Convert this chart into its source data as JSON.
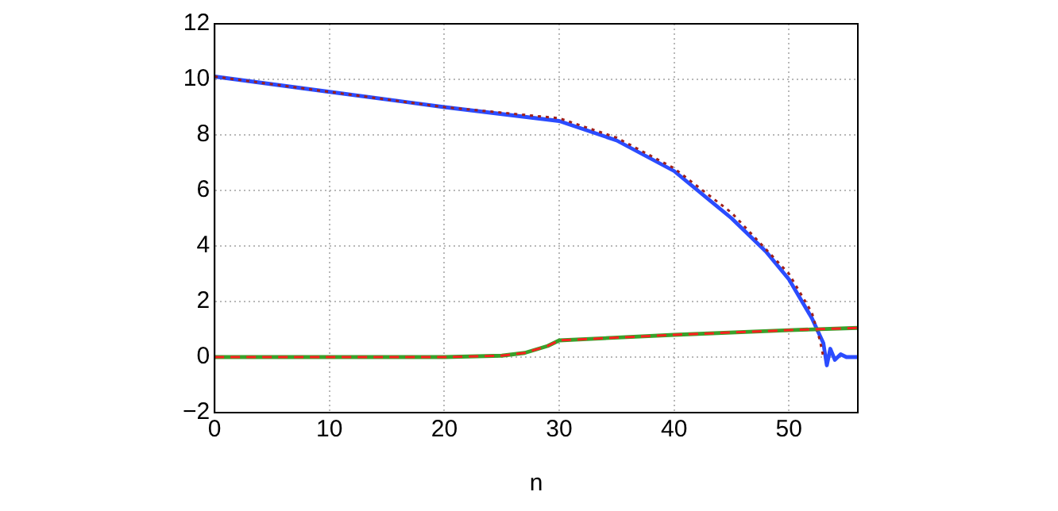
{
  "chart_data": {
    "type": "line",
    "xlabel": "n",
    "xlim": [
      0,
      56
    ],
    "xticks": [
      0,
      10,
      20,
      30,
      40,
      50
    ],
    "ylim": [
      -2,
      12
    ],
    "yticks": [
      -2,
      0,
      2,
      4,
      6,
      8,
      10,
      12
    ],
    "grid": true,
    "legend": false,
    "marker": "none",
    "series": [
      {
        "color": "#2b4cff",
        "line_style": "solid",
        "x": [
          0,
          10,
          20,
          30,
          35,
          40,
          45,
          48,
          50,
          52,
          53,
          53.3,
          53.6,
          54,
          54.5,
          55,
          56
        ],
        "values": [
          10.1,
          9.55,
          9.0,
          8.5,
          7.8,
          6.7,
          5.0,
          3.8,
          2.8,
          1.4,
          0.5,
          -0.3,
          0.3,
          -0.1,
          0.1,
          0,
          0
        ]
      },
      {
        "color": "#a0201a",
        "line_style": "dotted",
        "x": [
          0,
          10,
          20,
          30,
          35,
          40,
          45,
          50,
          52,
          52.7,
          53
        ],
        "values": [
          10.1,
          9.55,
          9.0,
          8.6,
          7.9,
          6.8,
          5.2,
          3.0,
          1.6,
          0.6,
          0
        ]
      },
      {
        "color": "#3aa02a",
        "line_style": "solid",
        "x": [
          0,
          20,
          25,
          27,
          29,
          30,
          40,
          50,
          56
        ],
        "values": [
          0,
          0,
          0.05,
          0.15,
          0.4,
          0.6,
          0.8,
          0.97,
          1.05
        ]
      },
      {
        "color": "#ff2020",
        "line_style": "dashed",
        "x": [
          0,
          20,
          25,
          27,
          29,
          30,
          40,
          50,
          56
        ],
        "values": [
          0,
          0,
          0.05,
          0.15,
          0.4,
          0.6,
          0.8,
          0.97,
          1.05
        ]
      }
    ]
  }
}
